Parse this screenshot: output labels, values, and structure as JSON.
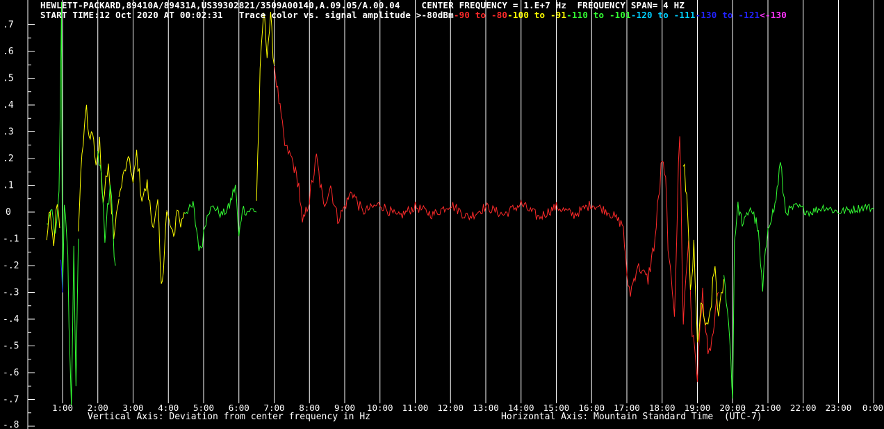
{
  "header": {
    "line1_left": "HEWLETT-PACKARD,89410A/89431A,US39302821/3509A00140,A.09.05/A.00.04",
    "line1_right": "CENTER FREQUENCY = 1.E+7 Hz  FREQUENCY SPAN= 4 HZ",
    "start_time": "START TIME:12 Oct 2020 AT 00:02:31",
    "legend_prefix": "Trace color vs. signal amplitude >-80dBm",
    "legend_bands": [
      {
        "label": "-90 to -80",
        "color": "#ff2a2a"
      },
      {
        "label": "-100 to -91",
        "color": "#ffff00"
      },
      {
        "label": "-110 to -101",
        "color": "#33ff33"
      },
      {
        "label": "-120 to -111",
        "color": "#00d0ff"
      },
      {
        "label": "-130 to -121",
        "color": "#2222ff"
      },
      {
        "label": "<-130",
        "color": "#ff33ff"
      }
    ]
  },
  "footer": {
    "vertical_axis": "Vertical Axis: Deviation from center frequency in Hz",
    "horizontal_axis": "Horizontal Axis: Mountain Standard Time  (UTC-7)"
  },
  "chart_data": {
    "type": "line",
    "xlabel": "Horizontal Axis: Mountain Standard Time  (UTC-7)",
    "ylabel": "Vertical Axis: Deviation from center frequency in Hz",
    "xlim": [
      0.5,
      24.0
    ],
    "ylim": [
      -0.8,
      0.75
    ],
    "x_ticks": [
      "1:00",
      "2:00",
      "3:00",
      "4:00",
      "5:00",
      "6:00",
      "7:00",
      "8:00",
      "9:00",
      "10:00",
      "11:00",
      "12:00",
      "13:00",
      "14:00",
      "15:00",
      "16:00",
      "17:00",
      "18:00",
      "19:00",
      "20:00",
      "21:00",
      "22:00",
      "23:00",
      "0:00"
    ],
    "y_ticks": [
      ".7",
      ".6",
      ".5",
      ".4",
      ".3",
      ".2",
      ".1",
      "0",
      "-.1",
      "-.2",
      "-.3",
      "-.4",
      "-.5",
      "-.6",
      "-.7",
      "-.8"
    ],
    "y_tick_values": [
      0.7,
      0.6,
      0.5,
      0.4,
      0.3,
      0.2,
      0.1,
      0,
      -0.1,
      -0.2,
      -0.3,
      -0.4,
      -0.5,
      -0.6,
      -0.7,
      -0.8
    ],
    "grid": "vertical lines at each hour",
    "colors": {
      "red": "#ff2a2a",
      "yellow": "#ffff00",
      "green": "#33ff33",
      "cyan": "#00d0ff",
      "blue": "#2222ff",
      "magenta": "#ff33ff"
    },
    "series": [
      {
        "color": "green",
        "points": [
          [
            0.55,
            -0.05
          ],
          [
            0.7,
            0.0
          ],
          [
            0.8,
            -0.1
          ],
          [
            0.9,
            0.05
          ],
          [
            0.97,
            0.75
          ],
          [
            1.0,
            -0.3
          ],
          [
            1.05,
            0.05
          ],
          [
            1.15,
            -0.2
          ],
          [
            1.25,
            -0.75
          ],
          [
            1.32,
            -0.1
          ],
          [
            1.38,
            -0.7
          ],
          [
            1.45,
            -0.1
          ]
        ]
      },
      {
        "color": "yellow",
        "points": [
          [
            0.55,
            -0.1
          ],
          [
            0.65,
            0.02
          ],
          [
            0.75,
            -0.12
          ],
          [
            0.85,
            0.03
          ],
          [
            0.92,
            -0.06
          ]
        ]
      },
      {
        "color": "yellow",
        "points": [
          [
            1.45,
            -0.05
          ],
          [
            1.55,
            0.2
          ],
          [
            1.62,
            0.32
          ],
          [
            1.68,
            0.39
          ],
          [
            1.75,
            0.28
          ],
          [
            1.85,
            0.3
          ],
          [
            1.95,
            0.18
          ],
          [
            2.05,
            0.25
          ],
          [
            2.15,
            0.05
          ],
          [
            2.3,
            0.2
          ],
          [
            2.45,
            -0.1
          ],
          [
            2.6,
            0.05
          ]
        ]
      },
      {
        "color": "green",
        "points": [
          [
            2.0,
            0.22
          ],
          [
            2.1,
            0.15
          ],
          [
            2.2,
            -0.1
          ],
          [
            2.35,
            0.1
          ],
          [
            2.5,
            -0.2
          ]
        ]
      },
      {
        "color": "yellow",
        "points": [
          [
            2.6,
            0.05
          ],
          [
            2.75,
            0.15
          ],
          [
            2.9,
            0.2
          ],
          [
            3.0,
            0.1
          ],
          [
            3.1,
            0.22
          ],
          [
            3.25,
            0.05
          ],
          [
            3.4,
            0.1
          ],
          [
            3.55,
            -0.05
          ],
          [
            3.7,
            0.02
          ],
          [
            3.8,
            -0.3
          ],
          [
            3.95,
            0.0
          ]
        ]
      },
      {
        "color": "yellow",
        "points": [
          [
            3.95,
            0.0
          ],
          [
            4.05,
            -0.05
          ],
          [
            4.15,
            -0.1
          ],
          [
            4.25,
            0.02
          ],
          [
            4.35,
            -0.05
          ],
          [
            4.45,
            0.0
          ]
        ]
      },
      {
        "color": "green",
        "points": [
          [
            4.45,
            0.0
          ],
          [
            4.7,
            0.02
          ],
          [
            4.9,
            -0.15
          ],
          [
            5.1,
            0.0
          ],
          [
            5.3,
            0.02
          ],
          [
            5.5,
            -0.01
          ],
          [
            5.7,
            0.01
          ],
          [
            5.9,
            0.1
          ],
          [
            6.0,
            -0.1
          ],
          [
            6.1,
            0.02
          ],
          [
            6.2,
            0.0
          ],
          [
            6.4,
            0.01
          ],
          [
            6.5,
            0.0
          ]
        ]
      },
      {
        "color": "yellow",
        "points": [
          [
            6.5,
            0.05
          ],
          [
            6.6,
            0.5
          ],
          [
            6.7,
            0.75
          ],
          [
            6.8,
            0.6
          ],
          [
            6.9,
            0.72
          ],
          [
            7.0,
            0.55
          ]
        ]
      },
      {
        "color": "red",
        "points": [
          [
            7.0,
            0.55
          ],
          [
            7.1,
            0.45
          ],
          [
            7.2,
            0.35
          ],
          [
            7.3,
            0.25
          ],
          [
            7.5,
            0.2
          ],
          [
            7.7,
            0.1
          ],
          [
            7.8,
            -0.05
          ],
          [
            8.0,
            0.05
          ],
          [
            8.2,
            0.2
          ],
          [
            8.4,
            0.02
          ],
          [
            8.6,
            0.1
          ],
          [
            8.8,
            -0.03
          ],
          [
            9.0,
            0.02
          ],
          [
            9.2,
            0.08
          ],
          [
            9.5,
            0.0
          ],
          [
            10.0,
            0.03
          ],
          [
            10.5,
            -0.02
          ],
          [
            11.0,
            0.02
          ],
          [
            11.5,
            -0.01
          ],
          [
            12.0,
            0.03
          ],
          [
            12.5,
            -0.02
          ],
          [
            13.0,
            0.02
          ],
          [
            13.5,
            -0.01
          ],
          [
            14.0,
            0.03
          ],
          [
            14.5,
            -0.02
          ],
          [
            15.0,
            0.02
          ],
          [
            15.5,
            -0.01
          ],
          [
            16.0,
            0.03
          ],
          [
            16.5,
            0.0
          ],
          [
            16.9,
            -0.05
          ],
          [
            17.0,
            -0.25
          ],
          [
            17.1,
            -0.3
          ],
          [
            17.3,
            -0.2
          ],
          [
            17.6,
            -0.25
          ],
          [
            17.8,
            -0.1
          ],
          [
            18.0,
            0.2
          ],
          [
            18.1,
            0.1
          ],
          [
            18.2,
            -0.2
          ],
          [
            18.35,
            -0.35
          ],
          [
            18.5,
            0.3
          ],
          [
            18.6,
            -0.4
          ],
          [
            18.75,
            -0.1
          ],
          [
            18.85,
            -0.45
          ],
          [
            19.0,
            -0.6
          ],
          [
            19.15,
            -0.3
          ],
          [
            19.3,
            -0.55
          ],
          [
            19.45,
            -0.45
          ],
          [
            19.6,
            -0.3
          ]
        ]
      },
      {
        "color": "yellow",
        "points": [
          [
            18.6,
            0.2
          ],
          [
            18.7,
            0.05
          ],
          [
            18.8,
            -0.3
          ],
          [
            18.9,
            -0.15
          ],
          [
            19.0,
            -0.5
          ],
          [
            19.1,
            -0.35
          ],
          [
            19.3,
            -0.45
          ],
          [
            19.5,
            -0.2
          ],
          [
            19.6,
            -0.4
          ],
          [
            19.75,
            -0.25
          ]
        ]
      },
      {
        "color": "green",
        "points": [
          [
            19.75,
            -0.25
          ],
          [
            19.85,
            -0.35
          ],
          [
            19.95,
            -0.55
          ],
          [
            20.0,
            -0.7
          ],
          [
            20.05,
            -0.1
          ],
          [
            20.15,
            0.02
          ],
          [
            20.3,
            -0.05
          ],
          [
            20.5,
            0.02
          ],
          [
            20.7,
            -0.05
          ],
          [
            20.85,
            -0.3
          ],
          [
            21.0,
            -0.05
          ],
          [
            21.2,
            0.02
          ],
          [
            21.35,
            0.18
          ],
          [
            21.5,
            0.0
          ],
          [
            21.8,
            0.02
          ],
          [
            22.2,
            0.0
          ],
          [
            22.6,
            0.02
          ],
          [
            23.0,
            0.0
          ],
          [
            23.4,
            0.01
          ],
          [
            23.8,
            0.02
          ],
          [
            24.0,
            0.01
          ]
        ]
      },
      {
        "color": "blue",
        "points": [
          [
            0.95,
            -0.15
          ],
          [
            1.0,
            -0.3
          ]
        ]
      }
    ]
  }
}
